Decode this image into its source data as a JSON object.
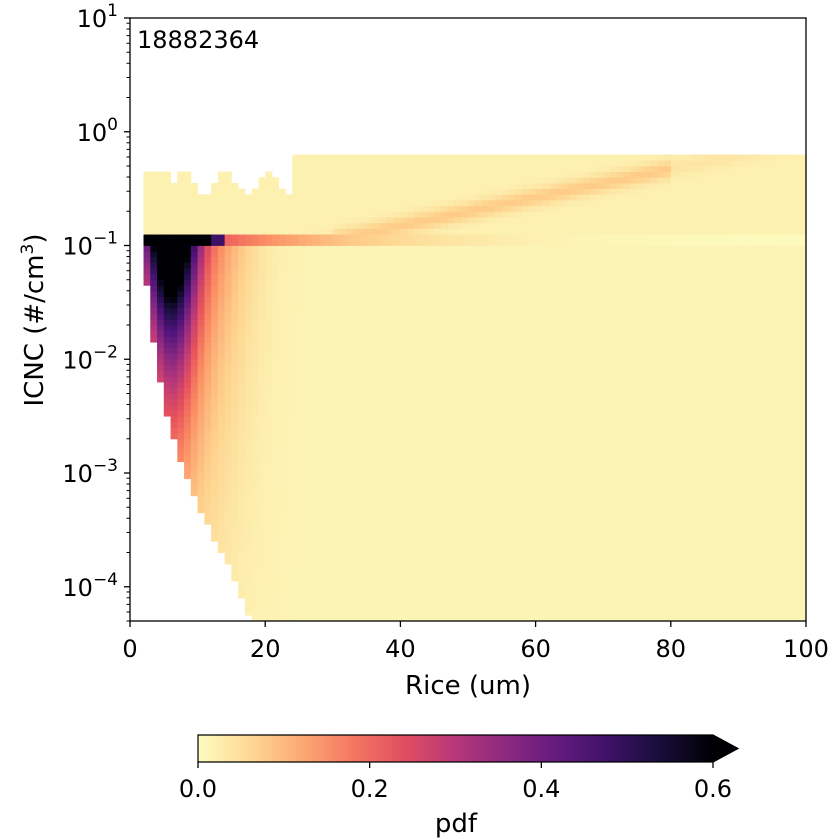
{
  "chart_data": {
    "type": "heatmap",
    "annotation": "18882364",
    "xlabel": "Rice (um)",
    "ylabel_parts": [
      "ICNC (#/cm",
      "3",
      ")"
    ],
    "xlim": [
      0,
      100
    ],
    "ylim": [
      5e-05,
      10
    ],
    "yscale": "log",
    "x_ticks": [
      {
        "value": 0,
        "label": "0"
      },
      {
        "value": 20,
        "label": "20"
      },
      {
        "value": 40,
        "label": "40"
      },
      {
        "value": 60,
        "label": "60"
      },
      {
        "value": 80,
        "label": "80"
      },
      {
        "value": 100,
        "label": "100"
      }
    ],
    "y_ticks": [
      {
        "value": 0.0001,
        "base": "10",
        "exp": "−4"
      },
      {
        "value": 0.001,
        "base": "10",
        "exp": "−3"
      },
      {
        "value": 0.01,
        "base": "10",
        "exp": "−2"
      },
      {
        "value": 0.1,
        "base": "10",
        "exp": "−1"
      },
      {
        "value": 1,
        "base": "10",
        "exp": "0"
      },
      {
        "value": 10,
        "base": "10",
        "exp": "1"
      }
    ],
    "density_description": {
      "peak_row_icnc": 0.1,
      "peak_x_range": [
        1,
        14
      ],
      "peak_value": 0.6,
      "lower_envelope": [
        [
          2,
          0.1
        ],
        [
          3,
          0.02
        ],
        [
          5,
          0.004
        ],
        [
          8,
          0.001
        ],
        [
          12,
          0.0003
        ],
        [
          16,
          0.0001
        ],
        [
          18,
          5e-05
        ]
      ]
    },
    "colorbar": {
      "label": "pdf",
      "range": [
        0,
        0.6
      ],
      "extend": "max",
      "colormap": "magma_r",
      "ticks": [
        {
          "value": 0.0,
          "label": "0.0"
        },
        {
          "value": 0.2,
          "label": "0.2"
        },
        {
          "value": 0.4,
          "label": "0.4"
        },
        {
          "value": 0.6,
          "label": "0.6"
        }
      ]
    }
  }
}
